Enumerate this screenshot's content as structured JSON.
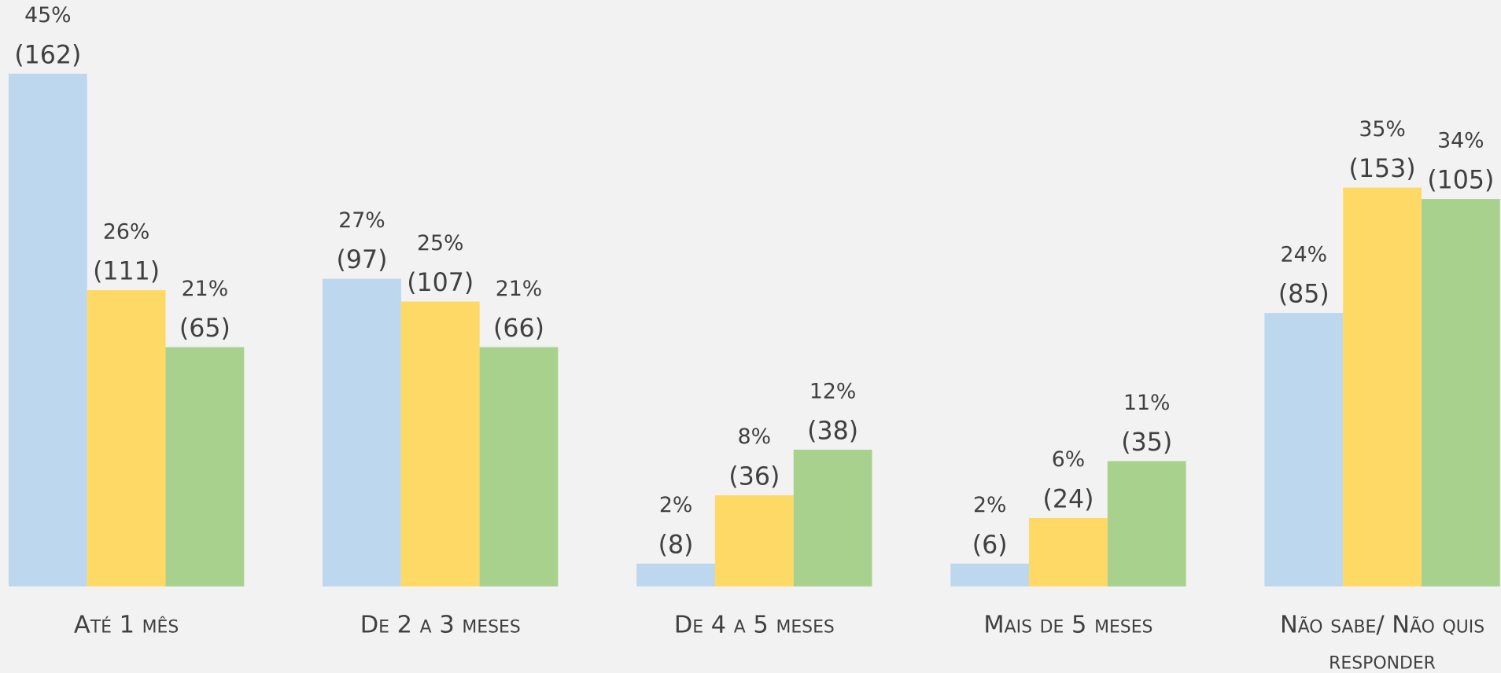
{
  "chart_data": {
    "type": "bar",
    "categories": [
      "Até 1 mês",
      "De 2 a 3 meses",
      "De 4 a 5 meses",
      "Mais de 5 meses",
      "Não sabe/ Não quis responder"
    ],
    "series": [
      {
        "color": "#bdd7ee",
        "values": [
          45,
          27,
          2,
          2,
          24
        ],
        "value_labels": [
          "45%",
          "27%",
          "2%",
          "2%",
          "24%"
        ],
        "count_labels": [
          "(162)",
          "(97)",
          "(8)",
          "(6)",
          "(85)"
        ]
      },
      {
        "color": "#ffd966",
        "values": [
          26,
          25,
          8,
          6,
          35
        ],
        "value_labels": [
          "26%",
          "25%",
          "8%",
          "6%",
          "35%"
        ],
        "count_labels": [
          "(111)",
          "(107)",
          "(36)",
          "(24)",
          "(153)"
        ]
      },
      {
        "color": "#a9d18e",
        "values": [
          21,
          21,
          12,
          11,
          34
        ],
        "value_labels": [
          "21%",
          "21%",
          "12%",
          "11%",
          "34%"
        ],
        "count_labels": [
          "(65)",
          "(66)",
          "(38)",
          "(35)",
          "(105)"
        ]
      }
    ],
    "ylim": [
      0,
      45
    ]
  }
}
